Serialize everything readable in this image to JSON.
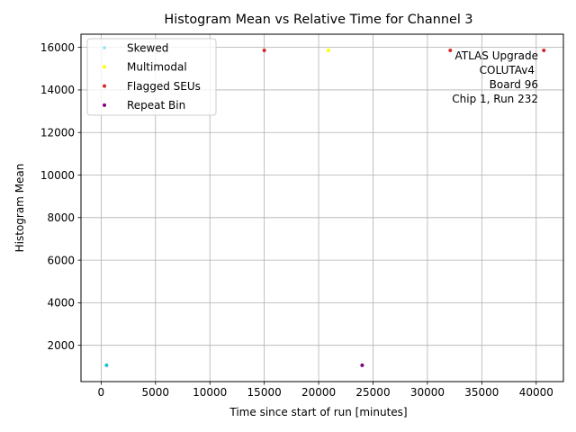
{
  "chart_data": {
    "type": "scatter",
    "title": "Histogram Mean vs Relative Time for Channel 3",
    "xlabel": "Time since start of run [minutes]",
    "ylabel": "Histogram Mean",
    "xlim": [
      -1850,
      42500
    ],
    "ylim": [
      295,
      16620
    ],
    "xticks": [
      0,
      5000,
      10000,
      15000,
      20000,
      25000,
      30000,
      35000,
      40000
    ],
    "yticks": [
      2000,
      4000,
      6000,
      8000,
      10000,
      12000,
      14000,
      16000
    ],
    "grid": true,
    "legend_position": "upper-left",
    "annotation_lines": [
      "ATLAS Upgrade",
      "COLUTAv4",
      "Board 96",
      "Chip 1, Run 232"
    ],
    "series": [
      {
        "name": "",
        "color": "#17becf",
        "points": [
          [
            500,
            1060
          ]
        ]
      },
      {
        "name": "Skewed",
        "color": "#a0e8f2",
        "points": []
      },
      {
        "name": "Multimodal",
        "color": "#ffff00",
        "points": [
          [
            20900,
            15860
          ]
        ]
      },
      {
        "name": "",
        "color": "#7fff00",
        "points": []
      },
      {
        "name": "Flagged SEUs",
        "color": "#d62728",
        "points": [
          [
            15000,
            15860
          ],
          [
            32100,
            15860
          ],
          [
            40700,
            15860
          ]
        ]
      },
      {
        "name": "Repeat Bin",
        "color": "#800080",
        "points": [
          [
            24000,
            1060
          ]
        ]
      }
    ],
    "legend": [
      {
        "label": "Skewed",
        "color": "#a0e8f2"
      },
      {
        "label": "Multimodal",
        "color": "#ffff00"
      },
      {
        "label": "Flagged SEUs",
        "color": "#d62728"
      },
      {
        "label": "Repeat Bin",
        "color": "#800080"
      }
    ]
  }
}
